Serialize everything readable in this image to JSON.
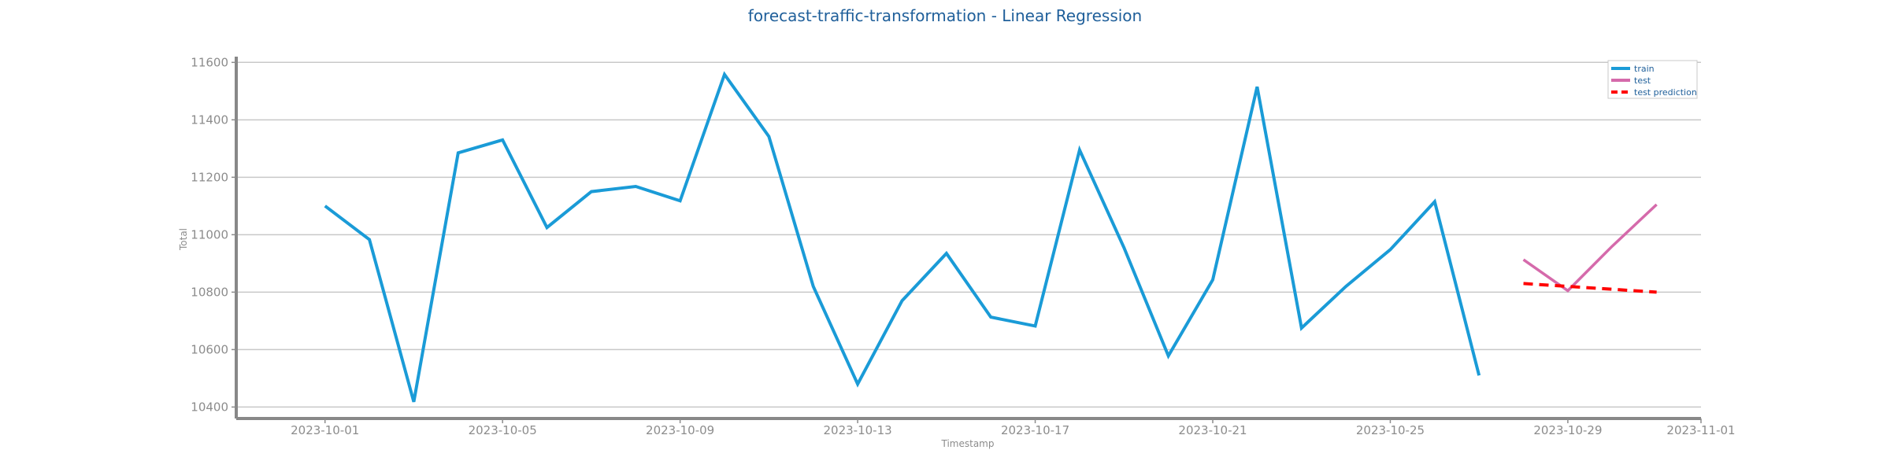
{
  "chart_data": {
    "type": "line",
    "title": "forecast-traffic-transformation - Linear Regression",
    "xlabel": "Timestamp",
    "ylabel": "Total",
    "xlim": [
      "2023-09-29",
      "2023-11-01"
    ],
    "ylim": [
      10360,
      11620
    ],
    "yticks": [
      10400,
      10600,
      10800,
      11000,
      11200,
      11400,
      11600
    ],
    "xticks": [
      "2023-10-01",
      "2023-10-05",
      "2023-10-09",
      "2023-10-13",
      "2023-10-17",
      "2023-10-21",
      "2023-10-25",
      "2023-10-29",
      "2023-11-01"
    ],
    "grid": "horizontal",
    "legend_position": "top-right",
    "series": [
      {
        "name": "train",
        "color": "#1a9bd7",
        "style": "solid",
        "points": [
          [
            "2023-10-01",
            11100
          ],
          [
            "2023-10-02",
            10983
          ],
          [
            "2023-10-03",
            10418
          ],
          [
            "2023-10-04",
            11285
          ],
          [
            "2023-10-05",
            11330
          ],
          [
            "2023-10-06",
            11025
          ],
          [
            "2023-10-07",
            11150
          ],
          [
            "2023-10-08",
            11168
          ],
          [
            "2023-10-09",
            11118
          ],
          [
            "2023-10-10",
            11558
          ],
          [
            "2023-10-11",
            11342
          ],
          [
            "2023-10-12",
            10820
          ],
          [
            "2023-10-13",
            10480
          ],
          [
            "2023-10-14",
            10770
          ],
          [
            "2023-10-15",
            10935
          ],
          [
            "2023-10-16",
            10713
          ],
          [
            "2023-10-17",
            10682
          ],
          [
            "2023-10-18",
            11295
          ],
          [
            "2023-10-19",
            10955
          ],
          [
            "2023-10-20",
            10578
          ],
          [
            "2023-10-21",
            10843
          ],
          [
            "2023-10-22",
            11515
          ],
          [
            "2023-10-23",
            10675
          ],
          [
            "2023-10-24",
            10820
          ],
          [
            "2023-10-25",
            10948
          ],
          [
            "2023-10-26",
            11115
          ],
          [
            "2023-10-27",
            10510
          ]
        ]
      },
      {
        "name": "test",
        "color": "#d56aab",
        "style": "solid",
        "points": [
          [
            "2023-10-28",
            10913
          ],
          [
            "2023-10-29",
            10805
          ],
          [
            "2023-10-30",
            10960
          ],
          [
            "2023-10-31",
            11105
          ]
        ]
      },
      {
        "name": "test prediction",
        "color": "#ff0000",
        "style": "dashed",
        "points": [
          [
            "2023-10-28",
            10830
          ],
          [
            "2023-10-29",
            10820
          ],
          [
            "2023-10-30",
            10810
          ],
          [
            "2023-10-31",
            10800
          ]
        ]
      }
    ]
  }
}
